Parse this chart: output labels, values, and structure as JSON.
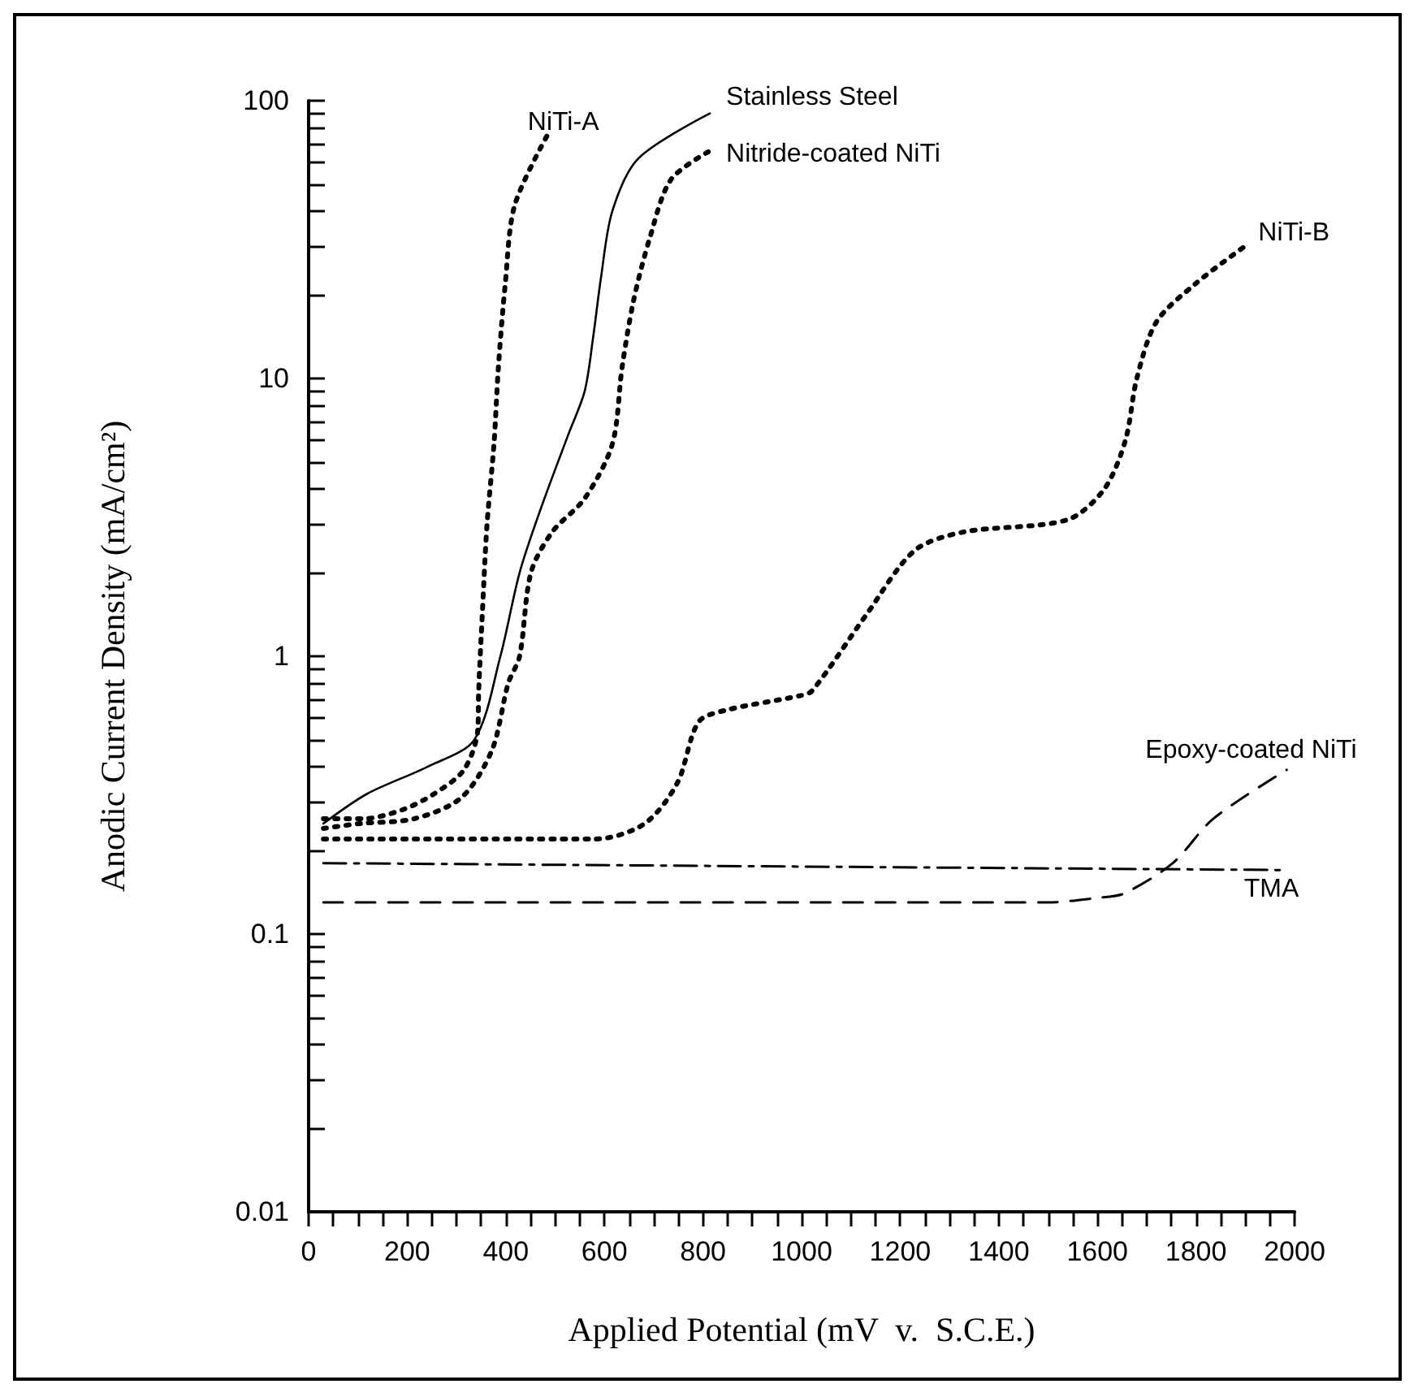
{
  "chart_data": {
    "type": "line",
    "xlabel": "Applied Potential (mV  v.  S.C.E.)",
    "ylabel": "Anodic Current Density (mA/cm²)",
    "log": "y",
    "grid": false,
    "legend": false,
    "marker": "none",
    "xlim": [
      0,
      2000
    ],
    "ylim": [
      0.01,
      100
    ],
    "xticks": [
      0,
      {
        "value": 50,
        "label": null
      },
      {
        "value": 100,
        "label": null
      },
      {
        "value": 150,
        "label": null
      },
      200,
      {
        "value": 250,
        "label": null
      },
      {
        "value": 300,
        "label": null
      },
      {
        "value": 350,
        "label": null
      },
      400,
      {
        "value": 450,
        "label": null
      },
      {
        "value": 500,
        "label": null
      },
      {
        "value": 550,
        "label": null
      },
      600,
      {
        "value": 650,
        "label": null
      },
      {
        "value": 700,
        "label": null
      },
      {
        "value": 750,
        "label": null
      },
      800,
      {
        "value": 850,
        "label": null
      },
      {
        "value": 900,
        "label": null
      },
      {
        "value": 950,
        "label": null
      },
      1000,
      {
        "value": 1050,
        "label": null
      },
      {
        "value": 1100,
        "label": null
      },
      {
        "value": 1150,
        "label": null
      },
      1200,
      {
        "value": 1250,
        "label": null
      },
      {
        "value": 1300,
        "label": null
      },
      {
        "value": 1350,
        "label": null
      },
      1400,
      {
        "value": 1450,
        "label": null
      },
      {
        "value": 1500,
        "label": null
      },
      {
        "value": 1550,
        "label": null
      },
      1600,
      {
        "value": 1650,
        "label": null
      },
      {
        "value": 1700,
        "label": null
      },
      {
        "value": 1750,
        "label": null
      },
      1800,
      {
        "value": 1850,
        "label": null
      },
      {
        "value": 1900,
        "label": null
      },
      {
        "value": 1950,
        "label": null
      },
      2000
    ],
    "yticks": [
      0.01,
      {
        "value": 0.02,
        "label": null
      },
      {
        "value": 0.03,
        "label": null
      },
      {
        "value": 0.04,
        "label": null
      },
      {
        "value": 0.05,
        "label": null
      },
      {
        "value": 0.06,
        "label": null
      },
      {
        "value": 0.07,
        "label": null
      },
      {
        "value": 0.08,
        "label": null
      },
      {
        "value": 0.09,
        "label": null
      },
      0.1,
      {
        "value": 0.2,
        "label": null
      },
      {
        "value": 0.3,
        "label": null
      },
      {
        "value": 0.4,
        "label": null
      },
      {
        "value": 0.5,
        "label": null
      },
      {
        "value": 0.6,
        "label": null
      },
      {
        "value": 0.7,
        "label": null
      },
      {
        "value": 0.8,
        "label": null
      },
      {
        "value": 0.9,
        "label": null
      },
      1,
      {
        "value": 2,
        "label": null
      },
      {
        "value": 3,
        "label": null
      },
      {
        "value": 4,
        "label": null
      },
      {
        "value": 5,
        "label": null
      },
      {
        "value": 6,
        "label": null
      },
      {
        "value": 7,
        "label": null
      },
      {
        "value": 8,
        "label": null
      },
      {
        "value": 9,
        "label": null
      },
      10,
      {
        "value": 20,
        "label": null
      },
      {
        "value": 30,
        "label": null
      },
      {
        "value": 40,
        "label": null
      },
      {
        "value": 50,
        "label": null
      },
      {
        "value": 60,
        "label": null
      },
      {
        "value": 70,
        "label": null
      },
      {
        "value": 80,
        "label": null
      },
      {
        "value": 90,
        "label": null
      },
      100
    ],
    "series": [
      {
        "name": "NiTi-A",
        "color": "#000000",
        "line_style": "dotted",
        "x": [
          30,
          110,
          190,
          255,
          315,
          343,
          345,
          353,
          362,
          376,
          385,
          399,
          418,
          484
        ],
        "values": [
          0.26,
          0.26,
          0.28,
          0.32,
          0.39,
          0.54,
          0.75,
          1.5,
          3,
          5.8,
          11,
          22,
          42,
          75
        ]
      },
      {
        "name": "Stainless Steel",
        "color": "#000000",
        "line_style": "solid",
        "x": [
          30,
          119,
          241,
          336,
          389,
          428,
          471,
          527,
          560,
          577,
          593,
          616,
          669,
          814
        ],
        "values": [
          0.25,
          0.32,
          0.4,
          0.5,
          1,
          2,
          3.4,
          6.3,
          9,
          14,
          23,
          40,
          62,
          90
        ]
      },
      {
        "name": "Nitride-coated NiTi",
        "color": "#000000",
        "line_style": "dotted",
        "x": [
          30,
          105,
          214,
          310,
          372,
          405,
          428,
          451,
          494,
          560,
          616,
          636,
          659,
          692,
          735,
          814
        ],
        "values": [
          0.24,
          0.25,
          0.26,
          0.31,
          0.46,
          0.8,
          1,
          2,
          2.8,
          3.7,
          5.8,
          11,
          19,
          32,
          52,
          66
        ]
      },
      {
        "name": "NiTi-B",
        "color": "#000000",
        "line_style": "dotted",
        "x": [
          30,
          583,
          682,
          748,
          791,
          847,
          995,
          1021,
          1130,
          1229,
          1328,
          1539,
          1614,
          1657,
          1680,
          1720,
          1800,
          1900
        ],
        "values": [
          0.22,
          0.22,
          0.25,
          0.35,
          0.58,
          0.64,
          0.72,
          0.75,
          1.4,
          2.4,
          2.8,
          3.1,
          4,
          6,
          10,
          16,
          22,
          30
        ]
      },
      {
        "name": "Epoxy-coated NiTi",
        "color": "#000000",
        "line_style": "dashed",
        "x": [
          30,
          1500,
          1600,
          1654,
          1753,
          1835,
          1984
        ],
        "values": [
          0.13,
          0.13,
          0.135,
          0.14,
          0.18,
          0.26,
          0.39
        ]
      },
      {
        "name": "TMA",
        "color": "#000000",
        "line_style": "dashdot",
        "x": [
          30,
          1970
        ],
        "values": [
          0.18,
          0.17
        ]
      }
    ]
  }
}
